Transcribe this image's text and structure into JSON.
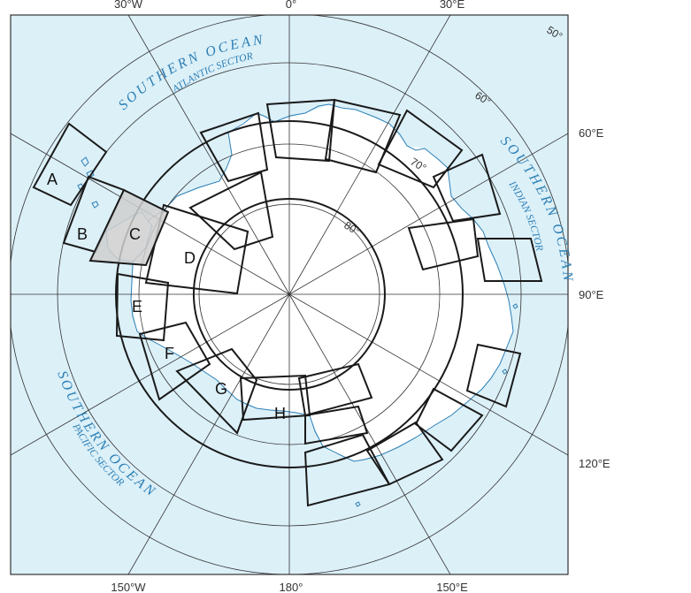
{
  "map": {
    "longitude_labels": {
      "top": [
        "30°W",
        "0°",
        "30°E"
      ],
      "right": [
        "60°E",
        "90°E",
        "120°E"
      ],
      "bottom": [
        "150°W",
        "180°",
        "150°E"
      ]
    },
    "latitude_labels": [
      "50°",
      "60°",
      "70°",
      "80°"
    ],
    "sectors": [
      "A",
      "B",
      "C",
      "D",
      "E",
      "F",
      "G",
      "H"
    ],
    "highlighted_sector": "C",
    "ocean_labels": {
      "atlantic_main": "SOUTHERN OCEAN",
      "atlantic_sub": "ATLANTIC SECTOR",
      "indian_main": "SOUTHERN OCEAN",
      "indian_sub": "INDIAN SECTOR",
      "pacific_main": "SOUTHERN OCEAN",
      "pacific_sub": "PACIFIC SECTOR"
    },
    "colors": {
      "ocean": "#dcf0f8",
      "land": "#ffffff",
      "coastline": "#2b7fb5",
      "grid": "#333333",
      "sector_outline": "#1a1a1a",
      "highlight": "#cfcfcf",
      "ocean_text": "#2b7fb5"
    }
  }
}
